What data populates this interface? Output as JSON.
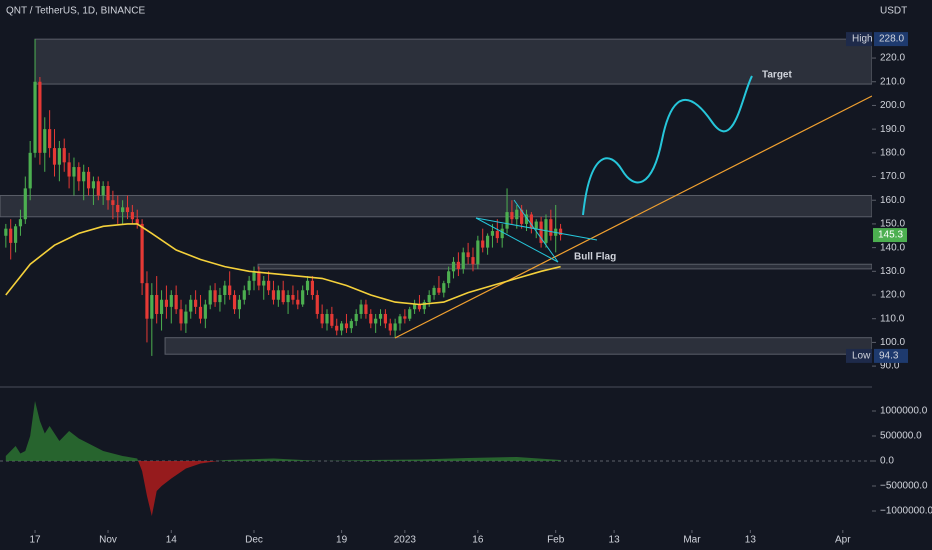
{
  "chart_data": {
    "type": "candlestick",
    "title": "QNT / TetherUS, 1D, BINANCE",
    "unit": "USDT",
    "up_color": "#4caf50",
    "down_color": "#e53935",
    "ylim": [
      81.6,
      244.5
    ],
    "xlim": [
      -1.2,
      178
    ],
    "yticks": [
      {
        "value": 90,
        "label": "90.0"
      },
      {
        "value": 100,
        "label": "100.0"
      },
      {
        "value": 110,
        "label": "110.0"
      },
      {
        "value": 120,
        "label": "120.0"
      },
      {
        "value": 130,
        "label": "130.0"
      },
      {
        "value": 140,
        "label": "140.0"
      },
      {
        "value": 150,
        "label": "150.0"
      },
      {
        "value": 160,
        "label": "160.0"
      },
      {
        "value": 170,
        "label": "170.0"
      },
      {
        "value": 180,
        "label": "180.0"
      },
      {
        "value": 190,
        "label": "190.0"
      },
      {
        "value": 200,
        "label": "200.0"
      },
      {
        "value": 210,
        "label": "210.0"
      },
      {
        "value": 220,
        "label": "220.0"
      }
    ],
    "xticks": [
      {
        "value": 6,
        "label": "17"
      },
      {
        "value": 21,
        "label": "Nov"
      },
      {
        "value": 34,
        "label": "14"
      },
      {
        "value": 51,
        "label": "Dec"
      },
      {
        "value": 69,
        "label": "19"
      },
      {
        "value": 82,
        "label": "2023"
      },
      {
        "value": 97,
        "label": "16"
      },
      {
        "value": 113,
        "label": "Feb"
      },
      {
        "value": 125,
        "label": "13"
      },
      {
        "value": 141,
        "label": "Mar"
      },
      {
        "value": 153,
        "label": "13"
      },
      {
        "value": 172,
        "label": "Apr"
      }
    ],
    "extremes": [
      {
        "name": "High",
        "value": 228,
        "label": "228.0"
      },
      {
        "name": "Low",
        "value": 94.3,
        "label": "94.3"
      }
    ],
    "zones": [
      [
        209,
        228
      ],
      [
        153,
        162
      ],
      [
        131,
        133
      ],
      [
        95,
        102
      ]
    ],
    "annotations": {
      "target": "Target",
      "flag": "Bull Flag"
    },
    "candles": [
      [
        145,
        150,
        140,
        148
      ],
      [
        148,
        152,
        135,
        142
      ],
      [
        142,
        150,
        138,
        149
      ],
      [
        149,
        156,
        145,
        152
      ],
      [
        152,
        170,
        150,
        165
      ],
      [
        165,
        185,
        160,
        180
      ],
      [
        180,
        228,
        178,
        210
      ],
      [
        210,
        212,
        175,
        180
      ],
      [
        180,
        195,
        172,
        190
      ],
      [
        190,
        198,
        178,
        182
      ],
      [
        182,
        190,
        170,
        175
      ],
      [
        175,
        185,
        168,
        182
      ],
      [
        182,
        186,
        172,
        176
      ],
      [
        176,
        180,
        165,
        170
      ],
      [
        170,
        178,
        162,
        174
      ],
      [
        174,
        176,
        164,
        168
      ],
      [
        168,
        175,
        160,
        172
      ],
      [
        172,
        174,
        162,
        165
      ],
      [
        165,
        170,
        158,
        168
      ],
      [
        168,
        170,
        160,
        162
      ],
      [
        162,
        168,
        158,
        166
      ],
      [
        166,
        168,
        156,
        160
      ],
      [
        160,
        164,
        152,
        158
      ],
      [
        158,
        162,
        150,
        155
      ],
      [
        155,
        160,
        150,
        157
      ],
      [
        157,
        162,
        152,
        155
      ],
      [
        155,
        158,
        150,
        152
      ],
      [
        152,
        156,
        148,
        150
      ],
      [
        150,
        152,
        120,
        125
      ],
      [
        125,
        130,
        100,
        110
      ],
      [
        110,
        125,
        94.3,
        120
      ],
      [
        120,
        128,
        108,
        112
      ],
      [
        112,
        122,
        105,
        118
      ],
      [
        118,
        124,
        110,
        115
      ],
      [
        115,
        122,
        108,
        120
      ],
      [
        120,
        124,
        112,
        114
      ],
      [
        114,
        118,
        105,
        108
      ],
      [
        108,
        116,
        104,
        113
      ],
      [
        113,
        120,
        110,
        118
      ],
      [
        118,
        122,
        112,
        115
      ],
      [
        115,
        120,
        108,
        110
      ],
      [
        110,
        118,
        106,
        116
      ],
      [
        116,
        124,
        114,
        122
      ],
      [
        122,
        125,
        115,
        117
      ],
      [
        117,
        123,
        113,
        120
      ],
      [
        120,
        126,
        116,
        124
      ],
      [
        124,
        130,
        118,
        120
      ],
      [
        120,
        122,
        112,
        114
      ],
      [
        114,
        120,
        110,
        118
      ],
      [
        118,
        124,
        116,
        122
      ],
      [
        122,
        128,
        120,
        126
      ],
      [
        126,
        132,
        122,
        130
      ],
      [
        130,
        132,
        122,
        124
      ],
      [
        124,
        128,
        118,
        126
      ],
      [
        126,
        130,
        120,
        122
      ],
      [
        122,
        126,
        116,
        118
      ],
      [
        118,
        124,
        115,
        122
      ],
      [
        122,
        126,
        116,
        117
      ],
      [
        117,
        122,
        112,
        120
      ],
      [
        120,
        124,
        116,
        118
      ],
      [
        118,
        122,
        114,
        116
      ],
      [
        116,
        124,
        115,
        122
      ],
      [
        122,
        128,
        120,
        126
      ],
      [
        126,
        128,
        118,
        120
      ],
      [
        120,
        122,
        110,
        112
      ],
      [
        112,
        116,
        106,
        108
      ],
      [
        108,
        114,
        105,
        112
      ],
      [
        112,
        115,
        106,
        107
      ],
      [
        107,
        110,
        103,
        105
      ],
      [
        105,
        109,
        103,
        108
      ],
      [
        108,
        112,
        104,
        106
      ],
      [
        106,
        110,
        104,
        109
      ],
      [
        109,
        114,
        107,
        112
      ],
      [
        112,
        118,
        110,
        116
      ],
      [
        116,
        118,
        110,
        112
      ],
      [
        112,
        114,
        106,
        108
      ],
      [
        108,
        112,
        104,
        110
      ],
      [
        110,
        114,
        107,
        112
      ],
      [
        112,
        114,
        106,
        108
      ],
      [
        108,
        110,
        103,
        105
      ],
      [
        105,
        110,
        102,
        108
      ],
      [
        108,
        112,
        105,
        111
      ],
      [
        111,
        114,
        108,
        110
      ],
      [
        110,
        115,
        109,
        114
      ],
      [
        114,
        118,
        112,
        116
      ],
      [
        116,
        120,
        113,
        114
      ],
      [
        114,
        118,
        112,
        117
      ],
      [
        117,
        122,
        115,
        120
      ],
      [
        120,
        124,
        118,
        123
      ],
      [
        123,
        128,
        120,
        121
      ],
      [
        121,
        126,
        119,
        125
      ],
      [
        125,
        132,
        123,
        130
      ],
      [
        130,
        136,
        127,
        134
      ],
      [
        134,
        138,
        128,
        131
      ],
      [
        131,
        140,
        129,
        138
      ],
      [
        138,
        142,
        133,
        136
      ],
      [
        136,
        140,
        130,
        133
      ],
      [
        133,
        145,
        131,
        143
      ],
      [
        143,
        148,
        138,
        140
      ],
      [
        140,
        146,
        137,
        145
      ],
      [
        145,
        150,
        140,
        147
      ],
      [
        147,
        152,
        142,
        144
      ],
      [
        144,
        150,
        140,
        148
      ],
      [
        148,
        165,
        146,
        155
      ],
      [
        155,
        160,
        150,
        152
      ],
      [
        152,
        158,
        148,
        156
      ],
      [
        156,
        158,
        148,
        150
      ],
      [
        150,
        156,
        147,
        154
      ],
      [
        154,
        155,
        146,
        148
      ],
      [
        148,
        152,
        144,
        151
      ],
      [
        151,
        153,
        140,
        142
      ],
      [
        142,
        154,
        140,
        152
      ],
      [
        152,
        156,
        143,
        145
      ],
      [
        145,
        158,
        138,
        148
      ],
      [
        148,
        150,
        143,
        145.3
      ]
    ],
    "ma": {
      "color": "#f5d13b",
      "x": [
        0,
        5,
        10,
        15,
        20,
        25,
        27,
        30,
        35,
        40,
        45,
        50,
        55,
        60,
        65,
        70,
        75,
        80,
        85,
        90,
        95,
        100,
        105,
        110,
        114
      ],
      "values": [
        120,
        133,
        141,
        146,
        149,
        150,
        150,
        146,
        139,
        135,
        132,
        130,
        129,
        128,
        127,
        124,
        120,
        117,
        116,
        117,
        121,
        124,
        127,
        130,
        132
      ]
    },
    "oscillator": {
      "ylim": [
        -1380000,
        1460000
      ],
      "yticks": [
        {
          "value": 1000000,
          "label": "1000000.0"
        },
        {
          "value": 500000,
          "label": "500000.0"
        },
        {
          "value": 0,
          "label": "0.0"
        },
        {
          "value": -500000,
          "label": "−500000.0"
        },
        {
          "value": -1000000,
          "label": "−1000000.0"
        }
      ],
      "x": [
        0,
        2,
        3,
        4,
        5,
        6,
        7,
        8,
        9,
        11,
        13,
        15,
        17,
        20,
        24,
        27,
        28,
        29,
        30,
        31,
        32,
        34,
        37,
        40,
        45,
        55,
        65,
        75,
        85,
        95,
        105,
        114
      ],
      "values": [
        100000,
        300000,
        150000,
        200000,
        500000,
        1200000,
        800000,
        550000,
        700000,
        400000,
        600000,
        450000,
        350000,
        200000,
        100000,
        50000,
        -200000,
        -700000,
        -1100000,
        -600000,
        -500000,
        -350000,
        -150000,
        -50000,
        20000,
        50000,
        0,
        20000,
        30000,
        60000,
        80000,
        20000
      ]
    }
  }
}
